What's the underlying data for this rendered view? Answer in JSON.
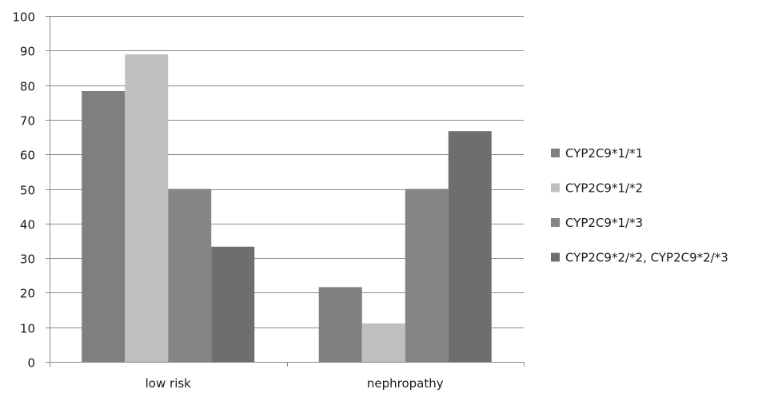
{
  "chart_data": {
    "type": "bar",
    "categories": [
      "low risk",
      "nephropathy"
    ],
    "series": [
      {
        "name": "CYP2C9*1/*1",
        "values": [
          78.3,
          21.6
        ],
        "color": "#7f7f7f"
      },
      {
        "name": "CYP2C9*1/*2",
        "values": [
          88.9,
          11.1
        ],
        "color": "#bfbfbf"
      },
      {
        "name": "CYP2C9*1/*3",
        "values": [
          50,
          50
        ],
        "color": "#858585"
      },
      {
        "name": "CYP2C9*2/*2, CYP2C9*2/*3",
        "values": [
          33.3,
          66.7
        ],
        "color": "#6e6e70"
      }
    ],
    "y_ticks": [
      "0",
      "10",
      "20",
      "30",
      "40",
      "50",
      "60",
      "70",
      "80",
      "90",
      "100"
    ],
    "ylim": [
      0,
      100
    ],
    "grid": true,
    "legend_position": "right",
    "title": "",
    "xlabel": "",
    "ylabel": ""
  }
}
